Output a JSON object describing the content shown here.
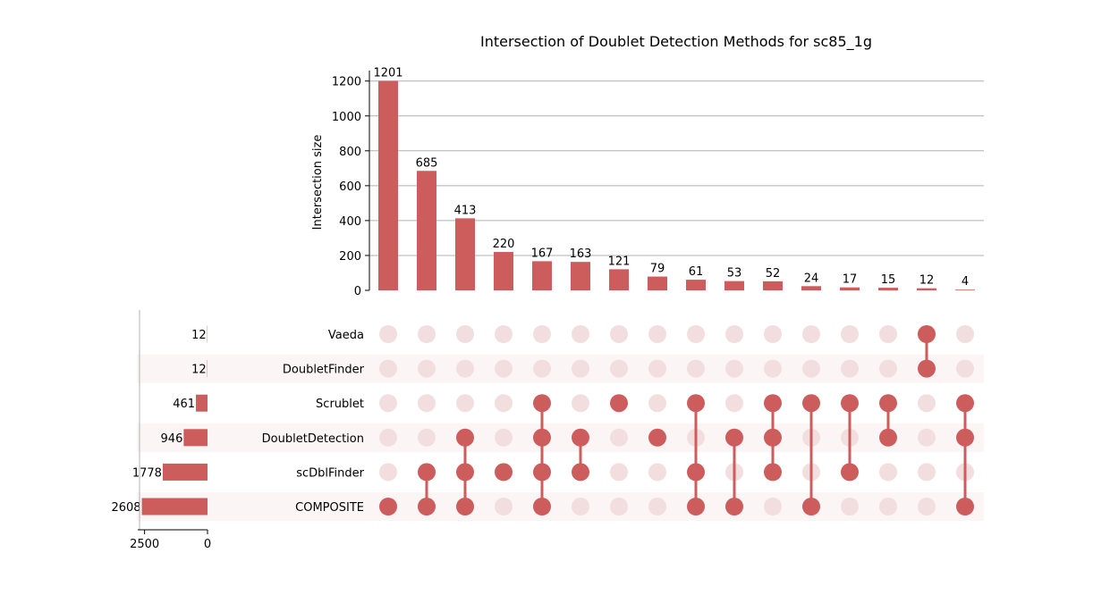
{
  "chart_data": {
    "type": "bar",
    "subtype": "upset",
    "title": "Intersection of Doublet Detection Methods for sc85_1g",
    "ylabel": "Intersection size",
    "ylim": [
      0,
      1260
    ],
    "yticks": [
      0,
      200,
      400,
      600,
      800,
      1000,
      1200
    ],
    "grid": true,
    "colors": {
      "bar": "#cd5c5c",
      "dot_active": "#cd5c5c",
      "dot_inactive": "#f2dede",
      "row_shade": "#fcf5f5"
    },
    "sets": [
      "Vaeda",
      "DoubletFinder",
      "Scrublet",
      "DoubletDetection",
      "scDblFinder",
      "COMPOSITE"
    ],
    "set_sizes": [
      12,
      12,
      461,
      946,
      1778,
      2608
    ],
    "set_size_ticks": [
      2500,
      0
    ],
    "set_size_max": 2700,
    "intersections": [
      {
        "value": 1201,
        "members": [
          "COMPOSITE"
        ]
      },
      {
        "value": 685,
        "members": [
          "scDblFinder",
          "COMPOSITE"
        ]
      },
      {
        "value": 413,
        "members": [
          "DoubletDetection",
          "scDblFinder",
          "COMPOSITE"
        ]
      },
      {
        "value": 220,
        "members": [
          "scDblFinder"
        ]
      },
      {
        "value": 167,
        "members": [
          "Scrublet",
          "DoubletDetection",
          "scDblFinder",
          "COMPOSITE"
        ]
      },
      {
        "value": 163,
        "members": [
          "DoubletDetection",
          "scDblFinder"
        ]
      },
      {
        "value": 121,
        "members": [
          "Scrublet"
        ]
      },
      {
        "value": 79,
        "members": [
          "DoubletDetection"
        ]
      },
      {
        "value": 61,
        "members": [
          "Scrublet",
          "scDblFinder",
          "COMPOSITE"
        ]
      },
      {
        "value": 53,
        "members": [
          "DoubletDetection",
          "COMPOSITE"
        ]
      },
      {
        "value": 52,
        "members": [
          "Scrublet",
          "DoubletDetection",
          "scDblFinder"
        ]
      },
      {
        "value": 24,
        "members": [
          "Scrublet",
          "COMPOSITE"
        ]
      },
      {
        "value": 17,
        "members": [
          "Scrublet",
          "scDblFinder"
        ]
      },
      {
        "value": 15,
        "members": [
          "Scrublet",
          "DoubletDetection"
        ]
      },
      {
        "value": 12,
        "members": [
          "Vaeda",
          "DoubletFinder"
        ]
      },
      {
        "value": 4,
        "members": [
          "Scrublet",
          "DoubletDetection",
          "COMPOSITE"
        ]
      }
    ]
  }
}
